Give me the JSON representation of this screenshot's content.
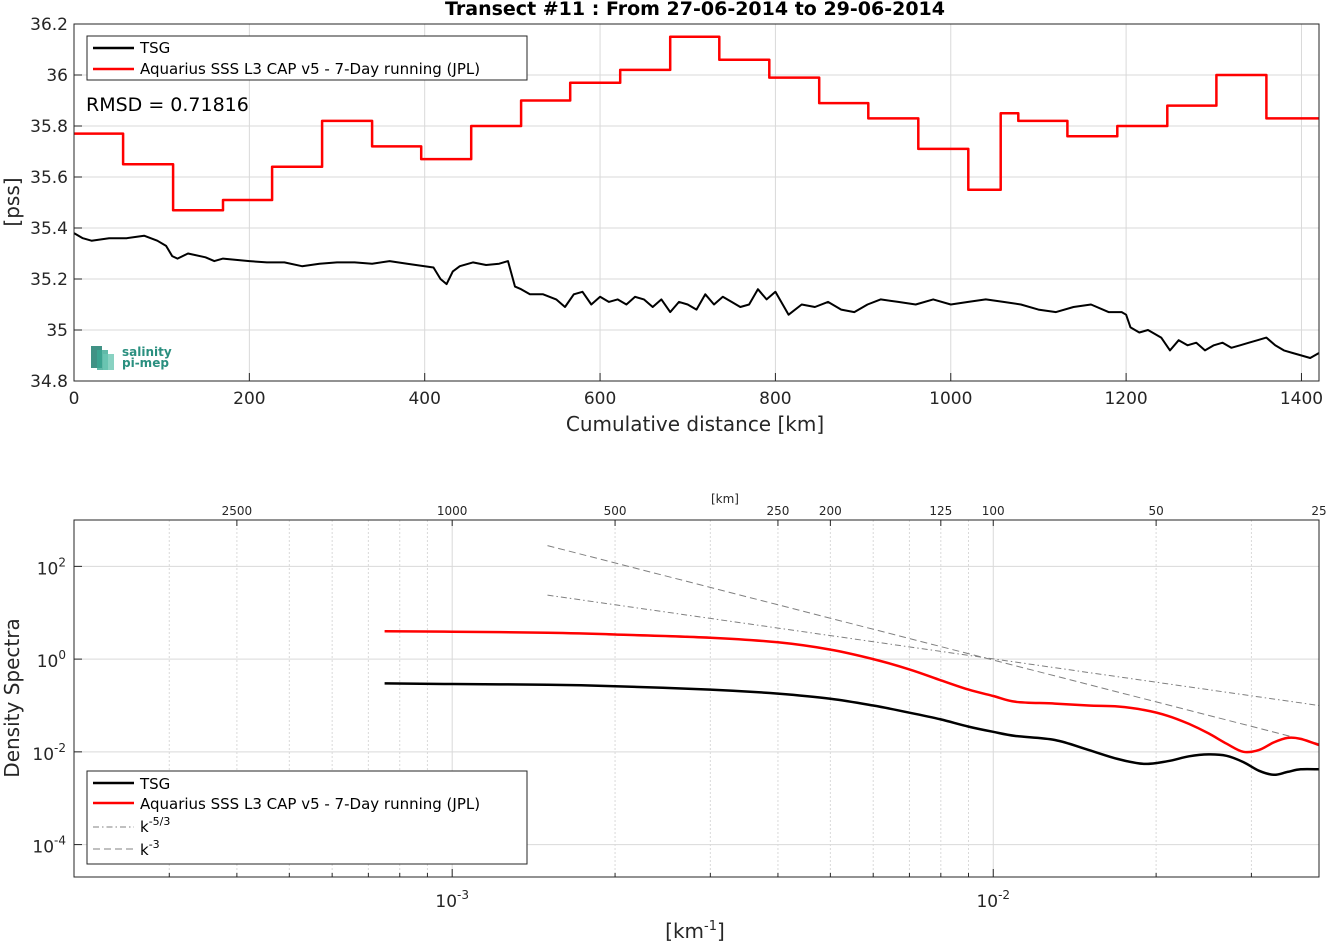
{
  "figure_title": "Transect #11 : From 27-06-2014 to 29-06-2014",
  "colors": {
    "tsg": "#000000",
    "aquarius": "#ff0000",
    "reference": "#808080",
    "grid": "#d9d9d9",
    "logo": "#2a8f7f"
  },
  "logo": {
    "line1": "salinity",
    "line2": "pi-mep"
  },
  "chart_data": [
    {
      "type": "line",
      "title": "Transect #11 : From 27-06-2014 to 29-06-2014",
      "xlabel": "Cumulative distance [km]",
      "ylabel": "[pss]",
      "xlim": [
        0,
        1420
      ],
      "ylim": [
        34.8,
        36.2
      ],
      "xticks": [
        0,
        200,
        400,
        600,
        800,
        1000,
        1200,
        1400
      ],
      "xtick_labels": [
        "0",
        "200",
        "400",
        "600",
        "800",
        "1000",
        "1200",
        "1400"
      ],
      "yticks": [
        34.8,
        35,
        35.2,
        35.4,
        35.6,
        35.8,
        36,
        36.2
      ],
      "ytick_labels": [
        "34.8",
        "35",
        "35.2",
        "35.4",
        "35.6",
        "35.8",
        "36",
        "36.2"
      ],
      "grid": true,
      "legend_position": "top-left",
      "annotation": "RMSD = 0.71816",
      "series": [
        {
          "name": "TSG",
          "x": [
            0,
            10,
            20,
            30,
            40,
            60,
            80,
            95,
            105,
            112,
            118,
            130,
            150,
            160,
            170,
            185,
            200,
            220,
            240,
            260,
            280,
            300,
            320,
            340,
            360,
            380,
            390,
            400,
            410,
            418,
            425,
            432,
            440,
            455,
            470,
            485,
            495,
            503,
            510,
            520,
            535,
            550,
            560,
            570,
            580,
            590,
            600,
            610,
            620,
            630,
            640,
            650,
            660,
            670,
            680,
            690,
            700,
            710,
            720,
            730,
            740,
            750,
            760,
            770,
            780,
            790,
            800,
            815,
            830,
            845,
            860,
            875,
            890,
            905,
            920,
            940,
            960,
            980,
            1000,
            1020,
            1040,
            1060,
            1080,
            1100,
            1120,
            1140,
            1160,
            1180,
            1195,
            1200,
            1205,
            1215,
            1225,
            1240,
            1250,
            1260,
            1270,
            1280,
            1290,
            1300,
            1310,
            1320,
            1330,
            1340,
            1350,
            1360,
            1370,
            1380,
            1390,
            1400,
            1410,
            1420
          ],
          "y": [
            35.38,
            35.36,
            35.35,
            35.355,
            35.36,
            35.36,
            35.37,
            35.35,
            35.33,
            35.29,
            35.28,
            35.3,
            35.285,
            35.27,
            35.28,
            35.275,
            35.27,
            35.265,
            35.265,
            35.25,
            35.26,
            35.265,
            35.265,
            35.26,
            35.27,
            35.26,
            35.255,
            35.25,
            35.245,
            35.2,
            35.18,
            35.23,
            35.25,
            35.265,
            35.255,
            35.26,
            35.27,
            35.17,
            35.16,
            35.14,
            35.14,
            35.12,
            35.09,
            35.14,
            35.15,
            35.1,
            35.13,
            35.11,
            35.12,
            35.1,
            35.13,
            35.12,
            35.09,
            35.12,
            35.07,
            35.11,
            35.1,
            35.08,
            35.14,
            35.1,
            35.13,
            35.11,
            35.09,
            35.1,
            35.16,
            35.12,
            35.15,
            35.06,
            35.1,
            35.09,
            35.11,
            35.08,
            35.07,
            35.1,
            35.12,
            35.11,
            35.1,
            35.12,
            35.1,
            35.11,
            35.12,
            35.11,
            35.1,
            35.08,
            35.07,
            35.09,
            35.1,
            35.07,
            35.07,
            35.06,
            35.01,
            34.99,
            35.0,
            34.97,
            34.92,
            34.96,
            34.94,
            34.95,
            34.92,
            34.94,
            34.95,
            34.93,
            34.94,
            34.95,
            34.96,
            34.97,
            34.94,
            34.92,
            34.91,
            34.9,
            34.89,
            34.91
          ]
        },
        {
          "name": "Aquarius SSS L3 CAP v5 - 7-Day running (JPL)",
          "x": [
            0,
            56,
            56,
            113,
            113,
            170,
            170,
            226,
            226,
            283,
            283,
            340,
            340,
            396,
            396,
            453,
            453,
            510,
            510,
            566,
            566,
            623,
            623,
            680,
            680,
            736,
            736,
            793,
            793,
            850,
            850,
            906,
            906,
            963,
            963,
            1020,
            1020,
            1057,
            1057,
            1077,
            1077,
            1133,
            1133,
            1190,
            1190,
            1247,
            1247,
            1303,
            1303,
            1360,
            1360,
            1420
          ],
          "y": [
            35.77,
            35.77,
            35.65,
            35.65,
            35.47,
            35.47,
            35.51,
            35.51,
            35.64,
            35.64,
            35.82,
            35.82,
            35.72,
            35.72,
            35.67,
            35.67,
            35.8,
            35.8,
            35.9,
            35.9,
            35.97,
            35.97,
            36.02,
            36.02,
            36.15,
            36.15,
            36.06,
            36.06,
            35.99,
            35.99,
            35.89,
            35.89,
            35.83,
            35.83,
            35.71,
            35.71,
            35.55,
            35.55,
            35.85,
            35.85,
            35.82,
            35.82,
            35.76,
            35.76,
            35.8,
            35.8,
            35.88,
            35.88,
            36.0,
            36.0,
            35.83,
            35.83
          ]
        }
      ]
    },
    {
      "type": "line",
      "xlabel": "[km-1]",
      "ylabel": "Density Spectra",
      "top_axis_label": "[km]",
      "xscale": "log",
      "yscale": "log",
      "xlim": [
        0.0002,
        0.04
      ],
      "ylim": [
        2e-05,
        1000
      ],
      "xticks": [
        0.001,
        0.01
      ],
      "xtick_labels": [
        {
          "base": "10",
          "exp": "-3"
        },
        {
          "base": "10",
          "exp": "-2"
        }
      ],
      "yticks": [
        0.0001,
        0.01,
        1,
        100
      ],
      "ytick_labels": [
        {
          "base": "10",
          "exp": "-4"
        },
        {
          "base": "10",
          "exp": "-2"
        },
        {
          "base": "10",
          "exp": "0"
        },
        {
          "base": "10",
          "exp": "2"
        }
      ],
      "top_ticks_km": [
        2500,
        1000,
        500,
        250,
        200,
        125,
        100,
        50,
        25
      ],
      "top_tick_labels": [
        "2500",
        "1000",
        "500",
        "250",
        "200",
        "125",
        "100",
        "50",
        "25"
      ],
      "grid": true,
      "legend_position": "bottom-left",
      "series": [
        {
          "name": "TSG",
          "x": [
            0.00075,
            0.001,
            0.0015,
            0.002,
            0.003,
            0.004,
            0.005,
            0.006,
            0.007,
            0.008,
            0.009,
            0.01,
            0.011,
            0.013,
            0.015,
            0.017,
            0.019,
            0.021,
            0.023,
            0.025,
            0.027,
            0.029,
            0.031,
            0.033,
            0.035,
            0.037,
            0.04
          ],
          "y": [
            0.3,
            0.29,
            0.28,
            0.26,
            0.22,
            0.18,
            0.14,
            0.1,
            0.07,
            0.05,
            0.035,
            0.027,
            0.022,
            0.018,
            0.011,
            0.007,
            0.0055,
            0.0063,
            0.008,
            0.0088,
            0.0082,
            0.006,
            0.0039,
            0.0032,
            0.0037,
            0.0042,
            0.0042
          ]
        },
        {
          "name": "Aquarius SSS L3 CAP v5 - 7-Day running (JPL)",
          "x": [
            0.00075,
            0.001,
            0.0015,
            0.002,
            0.003,
            0.004,
            0.005,
            0.006,
            0.007,
            0.008,
            0.009,
            0.01,
            0.011,
            0.013,
            0.015,
            0.017,
            0.019,
            0.021,
            0.023,
            0.025,
            0.027,
            0.029,
            0.031,
            0.033,
            0.035,
            0.037,
            0.04
          ],
          "y": [
            4.0,
            3.9,
            3.7,
            3.4,
            2.9,
            2.3,
            1.6,
            1.0,
            0.6,
            0.35,
            0.22,
            0.16,
            0.12,
            0.11,
            0.1,
            0.095,
            0.08,
            0.06,
            0.04,
            0.025,
            0.015,
            0.01,
            0.011,
            0.016,
            0.02,
            0.019,
            0.014
          ]
        },
        {
          "name": "k-5/3",
          "style": "dash-dot",
          "x": [
            0.0015,
            0.04
          ],
          "y": [
            24,
            0.1
          ]
        },
        {
          "name": "k-3",
          "style": "dashed",
          "x": [
            0.0015,
            0.04
          ],
          "y": [
            280,
            0.015
          ]
        }
      ]
    }
  ]
}
